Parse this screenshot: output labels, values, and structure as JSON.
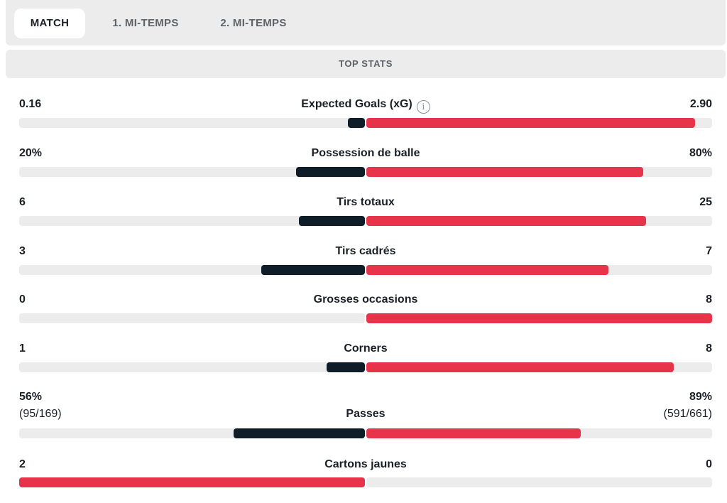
{
  "tabs": [
    {
      "label": "MATCH",
      "active": true
    },
    {
      "label": "1. MI-TEMPS",
      "active": false
    },
    {
      "label": "2. MI-TEMPS",
      "active": false
    }
  ],
  "section_title": "TOP STATS",
  "colors": {
    "home": "#0e1d28",
    "away": "#e8344b",
    "track": "#ececec"
  },
  "stats": [
    {
      "name": "Expected Goals (xG)",
      "info": true,
      "home": "0.16",
      "away": "2.90",
      "home_fill": 0.05,
      "away_fill": 0.95,
      "home_color": "#0e1d28",
      "away_color": "#e8344b"
    },
    {
      "name": "Possession de balle",
      "home": "20%",
      "away": "80%",
      "home_fill": 0.2,
      "away_fill": 0.8,
      "home_color": "#0e1d28",
      "away_color": "#e8344b"
    },
    {
      "name": "Tirs totaux",
      "home": "6",
      "away": "25",
      "home_fill": 0.19,
      "away_fill": 0.81,
      "home_color": "#0e1d28",
      "away_color": "#e8344b"
    },
    {
      "name": "Tirs cadrés",
      "home": "3",
      "away": "7",
      "home_fill": 0.3,
      "away_fill": 0.7,
      "home_color": "#0e1d28",
      "away_color": "#e8344b"
    },
    {
      "name": "Grosses occasions",
      "home": "0",
      "away": "8",
      "home_fill": 0.0,
      "away_fill": 1.0,
      "home_color": "#0e1d28",
      "away_color": "#e8344b"
    },
    {
      "name": "Corners",
      "home": "1",
      "away": "8",
      "home_fill": 0.11,
      "away_fill": 0.89,
      "home_color": "#0e1d28",
      "away_color": "#e8344b"
    },
    {
      "name": "Passes",
      "home": "56%",
      "away": "89%",
      "home_sub": "(95/169)",
      "away_sub": "(591/661)",
      "home_fill": 0.38,
      "away_fill": 0.62,
      "home_color": "#0e1d28",
      "away_color": "#e8344b"
    },
    {
      "name": "Cartons jaunes",
      "home": "2",
      "away": "0",
      "home_fill": 1.0,
      "away_fill": 0.0,
      "home_color": "#e8344b",
      "away_color": "#e8344b"
    }
  ]
}
